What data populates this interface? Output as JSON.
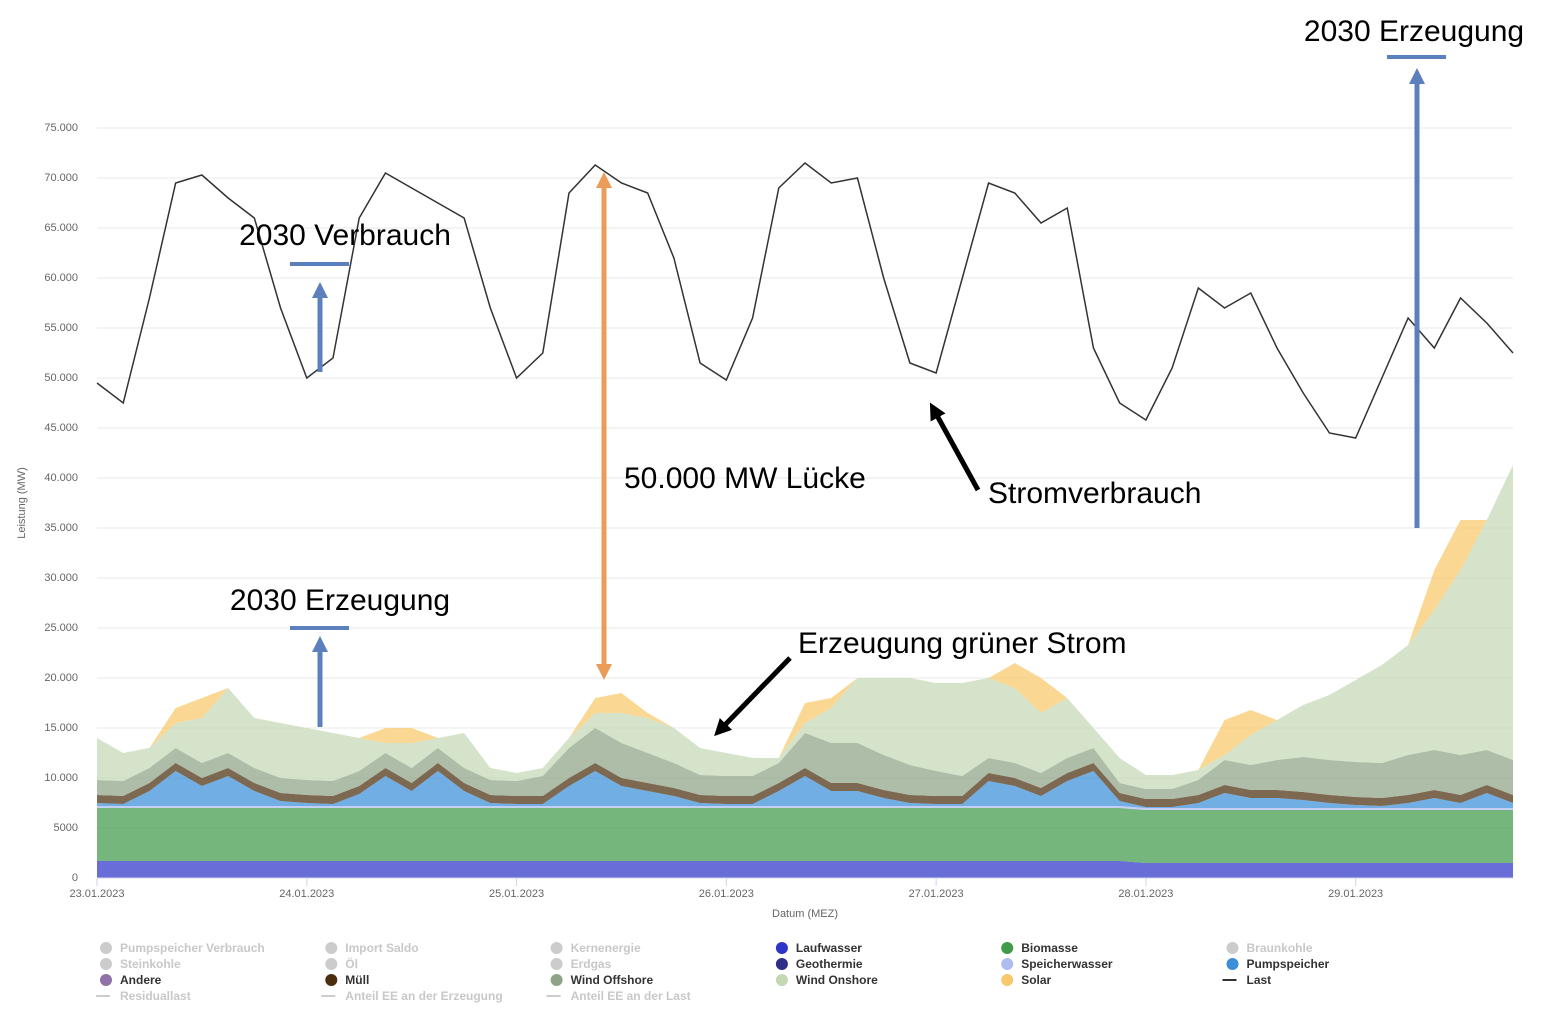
{
  "chart_data": {
    "type": "area",
    "stacked": true,
    "x_label": "Datum (MEZ)",
    "y_label": "Leistung (MW)",
    "ylim": [
      0,
      75000
    ],
    "yticks": [
      0,
      5000,
      {
        "value": 10000,
        "label": "10.000"
      },
      {
        "value": 15000,
        "label": "15.000"
      },
      {
        "value": 20000,
        "label": "20.000"
      },
      {
        "value": 25000,
        "label": "25.000"
      },
      {
        "value": 30000,
        "label": "30.000"
      },
      {
        "value": 35000,
        "label": "35.000"
      },
      {
        "value": 40000,
        "label": "40.000"
      },
      {
        "value": 45000,
        "label": "45.000"
      },
      {
        "value": 50000,
        "label": "50.000"
      },
      {
        "value": 55000,
        "label": "55.000"
      },
      {
        "value": 60000,
        "label": "60.000"
      },
      {
        "value": 65000,
        "label": "65.000"
      },
      {
        "value": 70000,
        "label": "70.000"
      },
      {
        "value": 75000,
        "label": "75.000"
      }
    ],
    "grid": true,
    "categories": [
      "23.01.2023",
      null,
      null,
      null,
      null,
      null,
      null,
      null,
      "24.01.2023",
      null,
      null,
      null,
      null,
      null,
      null,
      null,
      "25.01.2023",
      null,
      null,
      null,
      null,
      null,
      null,
      null,
      "26.01.2023",
      null,
      null,
      null,
      null,
      null,
      null,
      null,
      "27.01.2023",
      null,
      null,
      null,
      null,
      null,
      null,
      null,
      "28.01.2023",
      null,
      null,
      null,
      null,
      null,
      null,
      null,
      "29.01.2023",
      null,
      null,
      null,
      null,
      null,
      null
    ],
    "series": [
      {
        "name": "Pumpspeicher Verbrauch",
        "visible": false
      },
      {
        "name": "Import Saldo",
        "visible": false
      },
      {
        "name": "Kernenergie",
        "visible": false
      },
      {
        "name": "Laufwasser",
        "visible": true,
        "color": "#2f35c8",
        "values": [
          1700,
          1700,
          1700,
          1700,
          1700,
          1700,
          1700,
          1700,
          1700,
          1700,
          1700,
          1700,
          1700,
          1700,
          1700,
          1700,
          1700,
          1700,
          1700,
          1700,
          1700,
          1700,
          1700,
          1700,
          1700,
          1700,
          1700,
          1700,
          1700,
          1700,
          1700,
          1700,
          1700,
          1700,
          1700,
          1700,
          1700,
          1700,
          1700,
          1700,
          1500,
          1500,
          1500,
          1500,
          1500,
          1500,
          1500,
          1500,
          1500,
          1500,
          1500,
          1500,
          1500,
          1500,
          1500
        ]
      },
      {
        "name": "Biomasse",
        "visible": true,
        "color": "#3f9a4a",
        "values": [
          5300,
          5300,
          5300,
          5300,
          5300,
          5300,
          5300,
          5300,
          5300,
          5300,
          5300,
          5300,
          5300,
          5300,
          5300,
          5300,
          5300,
          5300,
          5300,
          5300,
          5300,
          5300,
          5300,
          5300,
          5300,
          5300,
          5300,
          5300,
          5300,
          5300,
          5300,
          5300,
          5300,
          5300,
          5300,
          5300,
          5300,
          5300,
          5300,
          5300,
          5300,
          5300,
          5300,
          5300,
          5300,
          5300,
          5300,
          5300,
          5300,
          5300,
          5300,
          5300,
          5300,
          5300,
          5300
        ]
      },
      {
        "name": "Braunkohle",
        "visible": false
      },
      {
        "name": "Steinkohle",
        "visible": false
      },
      {
        "name": "Öl",
        "visible": false
      },
      {
        "name": "Erdgas",
        "visible": false
      },
      {
        "name": "Geothermie",
        "visible": true,
        "color": "#2d2d8a"
      },
      {
        "name": "Speicherwasser",
        "visible": true,
        "color": "#aebcf0",
        "values": [
          200,
          200,
          200,
          200,
          200,
          200,
          200,
          200,
          200,
          200,
          200,
          200,
          200,
          200,
          200,
          200,
          200,
          200,
          200,
          200,
          200,
          200,
          200,
          200,
          200,
          200,
          200,
          200,
          200,
          200,
          200,
          200,
          200,
          200,
          200,
          200,
          200,
          200,
          200,
          200,
          200,
          200,
          200,
          200,
          200,
          200,
          200,
          200,
          200,
          200,
          200,
          200,
          200,
          200,
          200
        ]
      },
      {
        "name": "Pumpspeicher",
        "visible": true,
        "color": "#3a8fd8",
        "values": [
          300,
          200,
          1500,
          3500,
          2000,
          3000,
          1500,
          500,
          300,
          200,
          1200,
          3000,
          1500,
          3500,
          1500,
          300,
          200,
          200,
          2000,
          3500,
          2000,
          1500,
          1000,
          300,
          200,
          200,
          1500,
          3000,
          1500,
          1500,
          800,
          300,
          200,
          200,
          2500,
          2000,
          1000,
          2500,
          3500,
          500,
          100,
          100,
          500,
          1500,
          1000,
          1000,
          800,
          500,
          300,
          200,
          500,
          1000,
          500,
          1500,
          500
        ]
      },
      {
        "name": "Andere",
        "visible": true,
        "color": "#8e72a8"
      },
      {
        "name": "Müll",
        "visible": true,
        "color": "#4b2e0e",
        "values": [
          800,
          800,
          800,
          800,
          800,
          800,
          800,
          800,
          800,
          800,
          800,
          800,
          800,
          800,
          800,
          800,
          800,
          800,
          800,
          800,
          800,
          800,
          800,
          800,
          800,
          800,
          800,
          800,
          800,
          800,
          800,
          800,
          800,
          800,
          800,
          800,
          800,
          800,
          800,
          800,
          800,
          800,
          800,
          800,
          800,
          800,
          800,
          800,
          800,
          800,
          800,
          800,
          800,
          800,
          800
        ]
      },
      {
        "name": "Wind Offshore",
        "visible": true,
        "color": "#8fa486",
        "values": [
          1500,
          1500,
          1500,
          1500,
          1500,
          1500,
          1500,
          1500,
          1500,
          1500,
          1500,
          1500,
          1500,
          1500,
          1500,
          1500,
          1500,
          2000,
          3000,
          3500,
          3500,
          3000,
          2500,
          2000,
          2000,
          2000,
          2000,
          3500,
          4000,
          4000,
          3500,
          3000,
          2500,
          2000,
          1500,
          1500,
          1500,
          1500,
          1500,
          1000,
          1000,
          1000,
          1500,
          2500,
          2500,
          3000,
          3500,
          3500,
          3500,
          3500,
          4000,
          4000,
          4000,
          3500,
          3500
        ]
      },
      {
        "name": "Wind Onshore",
        "visible": true,
        "color": "#c4d8b4",
        "values": [
          4200,
          2800,
          2000,
          2500,
          4500,
          6500,
          5000,
          5500,
          5200,
          4800,
          3300,
          1000,
          2500,
          1000,
          3500,
          1200,
          800,
          800,
          1000,
          1500,
          3000,
          3500,
          3500,
          2700,
          2300,
          1800,
          500,
          1000,
          3500,
          6500,
          7700,
          8700,
          8800,
          9300,
          8000,
          7500,
          6000,
          6000,
          2000,
          2500,
          1400,
          1400,
          1000,
          500,
          3000,
          4000,
          5200,
          6500,
          8200,
          9800,
          11000,
          14000,
          18500,
          23000,
          29500
        ]
      },
      {
        "name": "Solar",
        "visible": true,
        "color": "#f8c96b",
        "values": [
          0,
          0,
          0,
          1500,
          2000,
          0,
          0,
          0,
          0,
          0,
          0,
          1500,
          1500,
          0,
          0,
          0,
          0,
          0,
          0,
          1500,
          2000,
          500,
          0,
          0,
          0,
          0,
          0,
          2000,
          1000,
          0,
          0,
          0,
          0,
          0,
          0,
          2500,
          3500,
          0,
          0,
          0,
          0,
          0,
          0,
          3500,
          2500,
          0,
          0,
          0,
          0,
          0,
          0,
          4000,
          5000,
          0,
          0
        ]
      },
      {
        "name": "Last",
        "visible": true,
        "line": true,
        "color": "#333333",
        "values": [
          49500,
          47500,
          58000,
          69500,
          70300,
          68000,
          66000,
          57000,
          50000,
          52000,
          66000,
          70500,
          69000,
          67500,
          66000,
          57000,
          50000,
          52500,
          68500,
          71300,
          69500,
          68500,
          62000,
          51500,
          49800,
          56000,
          69000,
          71500,
          69500,
          70000,
          60000,
          51500,
          50500,
          60000,
          69500,
          68500,
          65500,
          67000,
          53000,
          47500,
          45800,
          51000,
          59000,
          57000,
          58500,
          53000,
          48500,
          44500,
          44000,
          50000,
          56000,
          53000,
          58000,
          55500,
          52500
        ]
      },
      {
        "name": "Residuallast",
        "visible": false,
        "line": true
      },
      {
        "name": "Anteil EE an der Erzeugung",
        "visible": false,
        "line": true
      },
      {
        "name": "Anteil EE an der Last",
        "visible": false,
        "line": true
      }
    ],
    "annotations": [
      "2030 Verbrauch",
      "2030 Erzeugung",
      "50.000 MW Lücke",
      "Stromverbrauch",
      "Erzeugung grüner Strom",
      "2030 Erzeugung"
    ]
  }
}
